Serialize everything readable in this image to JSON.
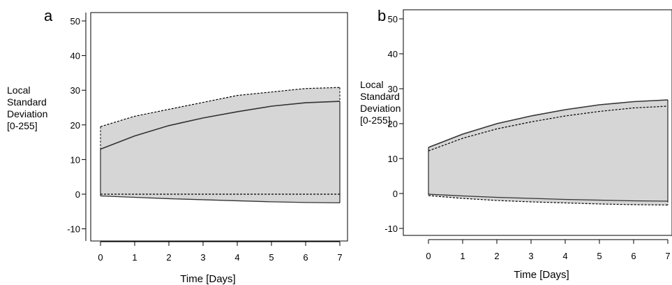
{
  "chart_data": [
    {
      "panel": "a",
      "type": "area",
      "xlabel": "Time [Days]",
      "ylabel_lines": [
        "Local",
        "Standard",
        "Deviation",
        "[0-255]"
      ],
      "xlim": [
        0,
        7
      ],
      "ylim": [
        -12,
        52
      ],
      "xticks": [
        0,
        1,
        2,
        3,
        4,
        5,
        6,
        7
      ],
      "yticks": [
        -10,
        0,
        10,
        20,
        30,
        40,
        50
      ],
      "grid": false,
      "fill_color": "#d6d6d6",
      "series": [
        {
          "style": "dashed",
          "x": [
            0,
            1,
            2,
            3,
            4,
            5,
            6,
            7
          ],
          "upper": [
            19.5,
            22.5,
            24.5,
            26.5,
            28.5,
            29.5,
            30.5,
            30.8
          ],
          "lower": [
            0,
            0,
            0,
            0,
            0,
            0,
            0,
            0
          ]
        },
        {
          "style": "solid",
          "x": [
            0,
            1,
            2,
            3,
            4,
            5,
            6,
            7
          ],
          "upper": [
            13,
            16.8,
            19.8,
            22,
            23.8,
            25.4,
            26.4,
            26.8
          ],
          "lower": [
            -0.5,
            -0.9,
            -1.3,
            -1.6,
            -1.9,
            -2.2,
            -2.4,
            -2.5
          ]
        }
      ]
    },
    {
      "panel": "b",
      "type": "area",
      "xlabel": "Time [Days]",
      "ylabel_lines": [
        "Local",
        "Standard",
        "Deviation",
        "[0-255]"
      ],
      "xlim": [
        0,
        7
      ],
      "ylim": [
        -12,
        52
      ],
      "xticks": [
        0,
        1,
        2,
        3,
        4,
        5,
        6,
        7
      ],
      "yticks": [
        -10,
        0,
        10,
        20,
        30,
        40,
        50
      ],
      "grid": false,
      "fill_color": "#d6d6d6",
      "series": [
        {
          "style": "dashed",
          "x": [
            0,
            1,
            2,
            3,
            4,
            5,
            6,
            7
          ],
          "upper": [
            12.2,
            15.8,
            18.5,
            20.5,
            22.2,
            23.5,
            24.5,
            25
          ],
          "lower": [
            -0.6,
            -1.4,
            -2,
            -2.4,
            -2.7,
            -3,
            -3.2,
            -3.3
          ]
        },
        {
          "style": "solid",
          "x": [
            0,
            1,
            2,
            3,
            4,
            5,
            6,
            7
          ],
          "upper": [
            13.2,
            17,
            20,
            22.2,
            24,
            25.4,
            26.3,
            26.8
          ],
          "lower": [
            -0.2,
            -0.7,
            -1.1,
            -1.4,
            -1.7,
            -1.9,
            -2.1,
            -2.2
          ]
        }
      ]
    }
  ]
}
